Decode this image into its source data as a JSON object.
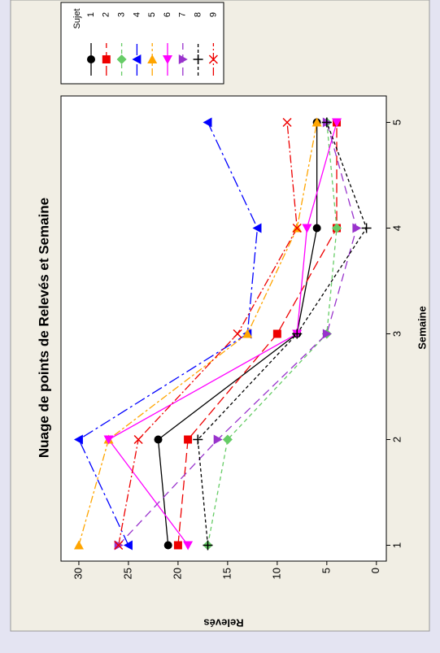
{
  "chart_data": {
    "type": "line",
    "title": "Nuage de points de Relevés et Semaine",
    "x_label": "Semaine",
    "y_label": "Relevés",
    "x": [
      1,
      2,
      3,
      4,
      5
    ],
    "xlim": [
      0.85,
      5.25
    ],
    "xticks": [
      1,
      2,
      3,
      4,
      5
    ],
    "ylim": [
      -1,
      31.8
    ],
    "yticks": [
      0,
      5,
      10,
      15,
      20,
      25,
      30
    ],
    "legend_title": "Sujet",
    "legend": "right",
    "series": [
      {
        "name": "1",
        "color": "#000000",
        "dash": "none",
        "marker": "circle",
        "values": [
          21,
          22,
          8,
          6,
          6
        ]
      },
      {
        "name": "2",
        "color": "#ee0000",
        "dash": "12,5",
        "marker": "square",
        "values": [
          20,
          19,
          10,
          4,
          4
        ]
      },
      {
        "name": "3",
        "color": "#66cc66",
        "dash": "5,4",
        "marker": "diamond",
        "values": [
          17,
          15,
          5,
          4,
          5
        ]
      },
      {
        "name": "4",
        "color": "#0000ff",
        "dash": "14,4,3,4",
        "marker": "tri-up",
        "values": [
          25,
          30,
          13,
          12,
          17
        ]
      },
      {
        "name": "5",
        "color": "#ffa500",
        "dash": "9,3,3,3",
        "marker": "tri-right",
        "values": [
          30,
          27,
          13,
          8,
          6
        ]
      },
      {
        "name": "6",
        "color": "#ff00ff",
        "dash": "none",
        "marker": "tri-left",
        "values": [
          19,
          27,
          8,
          7,
          4
        ]
      },
      {
        "name": "7",
        "color": "#9933cc",
        "dash": "10,6",
        "marker": "tri-down",
        "values": [
          26,
          16,
          5,
          2,
          5
        ]
      },
      {
        "name": "8",
        "color": "#000000",
        "dash": "4,3",
        "marker": "plus",
        "values": [
          17,
          18,
          8,
          1,
          5
        ]
      },
      {
        "name": "9",
        "color": "#ee0000",
        "dash": "10,3,2,3",
        "marker": "cross",
        "values": [
          26,
          24,
          14,
          8,
          9
        ]
      }
    ]
  }
}
